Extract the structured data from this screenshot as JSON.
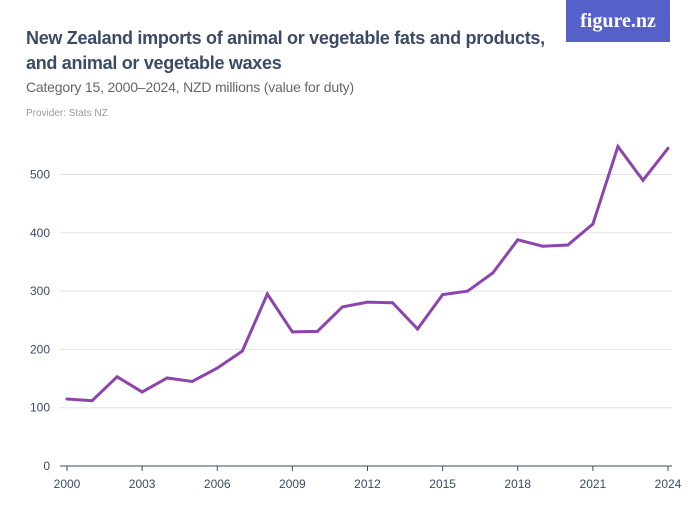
{
  "header": {
    "title": "New Zealand imports of animal or vegetable fats and products, and animal or vegetable waxes",
    "subtitle": "Category 15, 2000–2024, NZD millions (value for duty)",
    "provider": "Provider: Stats NZ",
    "logo": "figure.nz"
  },
  "chart_data": {
    "type": "line",
    "title": "New Zealand imports of animal or vegetable fats and products, and animal or vegetable waxes",
    "subtitle": "Category 15, 2000–2024, NZD millions (value for duty)",
    "x": [
      2000,
      2001,
      2002,
      2003,
      2004,
      2005,
      2006,
      2007,
      2008,
      2009,
      2010,
      2011,
      2012,
      2013,
      2014,
      2015,
      2016,
      2017,
      2018,
      2019,
      2020,
      2021,
      2022,
      2023,
      2024
    ],
    "series": [
      {
        "values": [
          115,
          112,
          153,
          127,
          151,
          145,
          168,
          197,
          295,
          230,
          231,
          273,
          281,
          280,
          235,
          294,
          300,
          331,
          388,
          377,
          379,
          415,
          548,
          490,
          545
        ],
        "color": "#8e44ad"
      }
    ],
    "xticks": [
      "2000",
      "2003",
      "2006",
      "2009",
      "2012",
      "2015",
      "2018",
      "2021",
      "2024"
    ],
    "yticks": [
      "0",
      "100",
      "200",
      "300",
      "400",
      "500"
    ],
    "xlim": [
      2000,
      2024
    ],
    "ylim": [
      0,
      550
    ],
    "grid": "horizontal",
    "colors": {
      "line": "#8e44ad",
      "grid": "#e3e3e3",
      "axis": "#3b4a66",
      "logo": "#5560c8"
    }
  }
}
